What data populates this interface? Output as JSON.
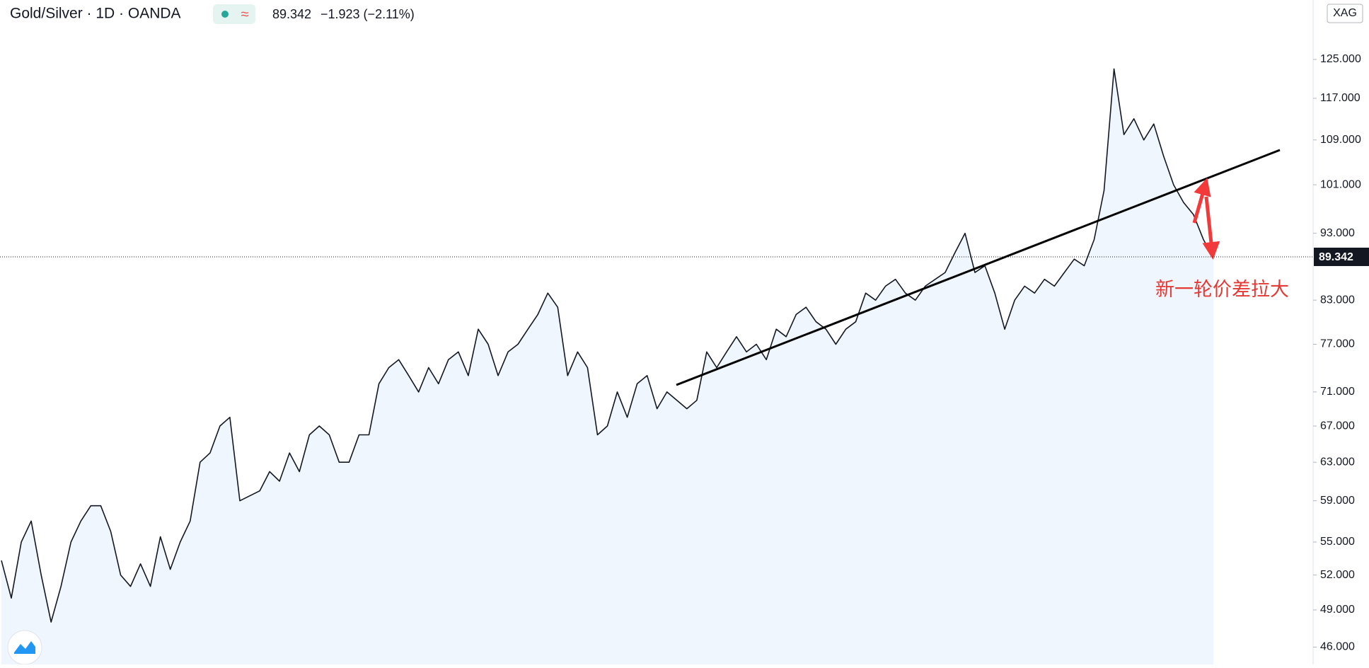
{
  "header": {
    "symbol": "Gold/Silver · 1D · OANDA",
    "change": "−1.923 (−2.11%)",
    "compare": "XAG"
  },
  "chart_data": {
    "type": "area",
    "log_scale": true,
    "color": "#131722",
    "fill": "#f0f6fe",
    "annotation": "新一轮价差拉大",
    "last_price": 89.342,
    "ylim": [
      44.66,
      138.3
    ],
    "yticks": [
      {
        "value": 46,
        "label": "46.000"
      },
      {
        "value": 49,
        "label": "49.000"
      },
      {
        "value": 52,
        "label": "52.000"
      },
      {
        "value": 55,
        "label": "55.000"
      },
      {
        "value": 59,
        "label": "59.000"
      },
      {
        "value": 63,
        "label": "63.000"
      },
      {
        "value": 67,
        "label": "67.000"
      },
      {
        "value": 71,
        "label": "71.000"
      },
      {
        "value": 77,
        "label": "77.000"
      },
      {
        "value": 83,
        "label": "83.000"
      },
      {
        "value": 93,
        "label": "93.000"
      },
      {
        "value": 101,
        "label": "101.000"
      },
      {
        "value": 109,
        "label": "109.000"
      },
      {
        "value": 117,
        "label": "117.000"
      },
      {
        "value": 125,
        "label": "125.000"
      }
    ],
    "values": [
      53.3,
      50,
      55,
      57,
      52,
      48,
      51,
      55,
      57,
      58.5,
      58.5,
      56,
      52,
      51,
      53,
      51,
      55.5,
      52.5,
      55,
      57,
      63,
      64,
      67,
      68,
      59,
      59.5,
      60,
      62,
      61,
      64,
      62,
      66,
      67,
      66,
      63,
      63,
      66,
      66,
      72,
      74,
      75,
      73,
      71,
      74,
      72,
      75,
      76,
      73,
      79,
      77,
      73,
      76,
      77,
      79,
      81,
      84,
      82,
      73,
      76,
      74,
      66,
      67,
      71,
      68,
      72,
      73,
      69,
      71,
      70,
      69,
      70,
      76,
      74,
      76,
      78,
      76,
      77,
      75,
      79,
      78,
      81,
      82,
      80,
      79,
      77,
      79,
      80,
      84,
      83,
      85,
      86,
      84,
      83,
      85,
      86,
      87,
      90,
      93,
      87,
      88,
      84,
      79,
      83,
      85,
      84,
      86,
      85,
      87,
      89,
      88,
      92,
      100,
      123,
      110,
      113,
      109,
      112,
      106,
      101,
      98,
      96,
      92,
      89.342
    ]
  }
}
